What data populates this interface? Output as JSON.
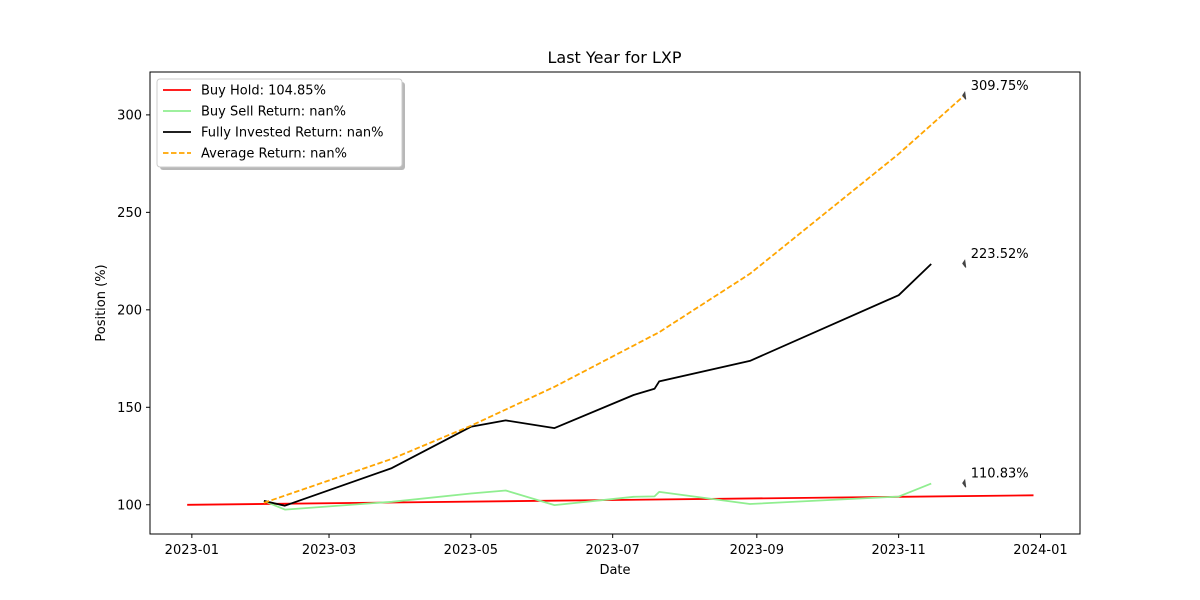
{
  "chart_data": {
    "type": "line",
    "title": "Last Year for LXP",
    "xlabel": "Date",
    "ylabel": "Position (%)",
    "xlim": [
      "2022-12-14",
      "2024-01-18"
    ],
    "ylim": [
      85,
      322
    ],
    "x_ticks": [
      "2023-01",
      "2023-03",
      "2023-05",
      "2023-07",
      "2023-09",
      "2023-11",
      "2024-01"
    ],
    "y_ticks": [
      100,
      150,
      200,
      250,
      300
    ],
    "grid": false,
    "legend_position": "upper-left",
    "series": [
      {
        "name": "Buy Hold: 104.85%",
        "color": "#ff0000",
        "style": "solid",
        "points": [
          [
            "2022-12-30",
            100.0
          ],
          [
            "2023-12-29",
            104.85
          ]
        ]
      },
      {
        "name": "Buy Sell Return: nan%",
        "color": "#90ee90",
        "style": "solid",
        "points": [
          [
            "2023-02-01",
            102
          ],
          [
            "2023-02-10",
            97.5
          ],
          [
            "2023-03-28",
            101.5
          ],
          [
            "2023-05-01",
            105.8
          ],
          [
            "2023-05-16",
            107.3
          ],
          [
            "2023-06-06",
            99.8
          ],
          [
            "2023-07-10",
            104.1
          ],
          [
            "2023-07-19",
            104.3
          ],
          [
            "2023-07-21",
            106.6
          ],
          [
            "2023-08-29",
            100.4
          ],
          [
            "2023-11-01",
            104.2
          ],
          [
            "2023-11-15",
            110.83
          ]
        ]
      },
      {
        "name": "Fully Invested Return: nan%",
        "color": "#000000",
        "style": "solid",
        "points": [
          [
            "2023-02-01",
            102
          ],
          [
            "2023-02-10",
            99.5
          ],
          [
            "2023-03-28",
            118.8
          ],
          [
            "2023-05-01",
            140.0
          ],
          [
            "2023-05-16",
            143.3
          ],
          [
            "2023-06-06",
            139.3
          ],
          [
            "2023-07-10",
            156.3
          ],
          [
            "2023-07-19",
            159.5
          ],
          [
            "2023-07-21",
            163.3
          ],
          [
            "2023-08-29",
            173.8
          ],
          [
            "2023-11-01",
            207.5
          ],
          [
            "2023-11-15",
            223.52
          ]
        ]
      },
      {
        "name": "Average Return: nan%",
        "color": "#ffa500",
        "style": "dashed",
        "points": [
          [
            "2023-02-01",
            101
          ],
          [
            "2023-03-28",
            123.5
          ],
          [
            "2023-05-01",
            140.5
          ],
          [
            "2023-06-06",
            160.5
          ],
          [
            "2023-07-21",
            188.5
          ],
          [
            "2023-08-29",
            218.5
          ],
          [
            "2023-11-01",
            280
          ],
          [
            "2023-11-29",
            309.75
          ]
        ]
      }
    ],
    "annotations": [
      {
        "text": "309.75%",
        "x": "2023-11-29",
        "y": 309.75
      },
      {
        "text": "223.52%",
        "x": "2023-11-29",
        "y": 223.52
      },
      {
        "text": "110.83%",
        "x": "2023-11-29",
        "y": 110.83
      }
    ]
  }
}
